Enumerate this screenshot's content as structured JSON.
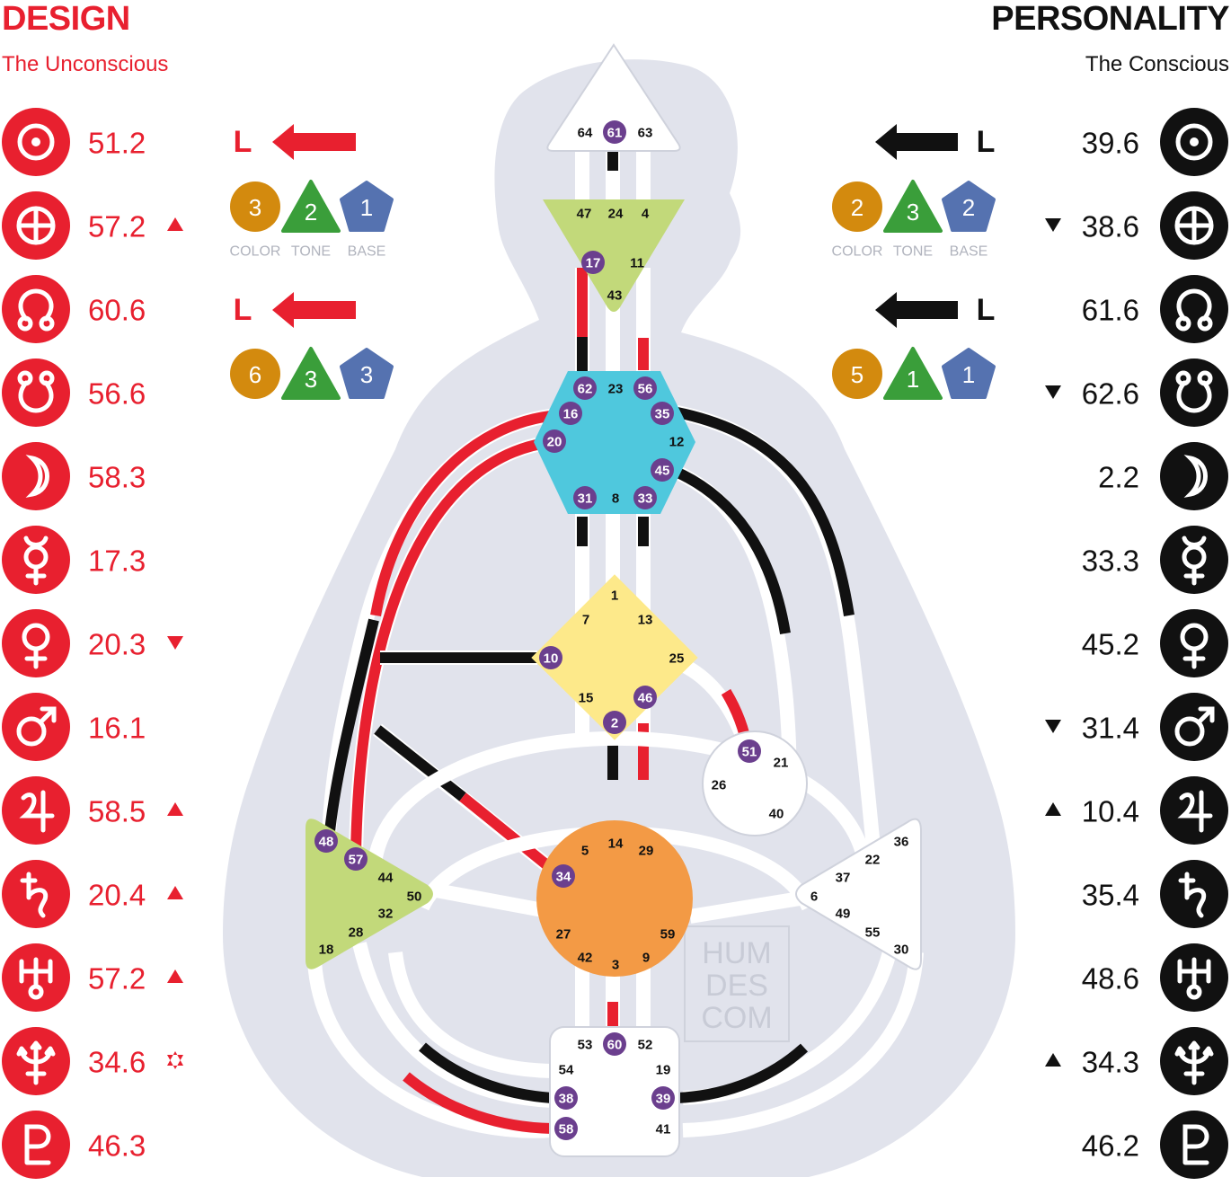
{
  "colors": {
    "design": "#e8202f",
    "personality": "#111111",
    "body_silhouette": "#e1e3ec",
    "activated_gate": "#6b3f8e",
    "color_badge": "#d38a0e",
    "tone_badge": "#3a9e3a",
    "base_badge": "#5572b0"
  },
  "design": {
    "title": "DESIGN",
    "subtitle": "The Unconscious",
    "variables": {
      "arrow_top": "L",
      "arrow_bottom": "L",
      "top_badges": [
        "3",
        "2",
        "1"
      ],
      "bottom_badges": [
        "6",
        "3",
        "3"
      ],
      "labels": [
        "COLOR",
        "TONE",
        "BASE"
      ]
    },
    "planets": [
      {
        "icon": "sun-icon",
        "value": "51.2",
        "marker": ""
      },
      {
        "icon": "earth-icon",
        "value": "57.2",
        "marker": "up"
      },
      {
        "icon": "north-node-icon",
        "value": "60.6",
        "marker": ""
      },
      {
        "icon": "south-node-icon",
        "value": "56.6",
        "marker": ""
      },
      {
        "icon": "moon-icon",
        "value": "58.3",
        "marker": ""
      },
      {
        "icon": "mercury-icon",
        "value": "17.3",
        "marker": ""
      },
      {
        "icon": "venus-icon",
        "value": "20.3",
        "marker": "down"
      },
      {
        "icon": "mars-icon",
        "value": "16.1",
        "marker": ""
      },
      {
        "icon": "jupiter-icon",
        "value": "58.5",
        "marker": "up"
      },
      {
        "icon": "saturn-icon",
        "value": "20.4",
        "marker": "up"
      },
      {
        "icon": "uranus-icon",
        "value": "57.2",
        "marker": "up"
      },
      {
        "icon": "neptune-icon",
        "value": "34.6",
        "marker": "star"
      },
      {
        "icon": "pluto-icon",
        "value": "46.3",
        "marker": ""
      }
    ]
  },
  "personality": {
    "title": "PERSONALITY",
    "subtitle": "The Conscious",
    "variables": {
      "arrow_top": "L",
      "arrow_bottom": "L",
      "top_badges": [
        "2",
        "3",
        "2"
      ],
      "bottom_badges": [
        "5",
        "1",
        "1"
      ],
      "labels": [
        "COLOR",
        "TONE",
        "BASE"
      ]
    },
    "planets": [
      {
        "icon": "sun-icon",
        "value": "39.6",
        "marker": ""
      },
      {
        "icon": "earth-icon",
        "value": "38.6",
        "marker": "down"
      },
      {
        "icon": "north-node-icon",
        "value": "61.6",
        "marker": ""
      },
      {
        "icon": "south-node-icon",
        "value": "62.6",
        "marker": "down"
      },
      {
        "icon": "moon-icon",
        "value": "2.2",
        "marker": ""
      },
      {
        "icon": "mercury-icon",
        "value": "33.3",
        "marker": ""
      },
      {
        "icon": "venus-icon",
        "value": "45.2",
        "marker": ""
      },
      {
        "icon": "mars-icon",
        "value": "31.4",
        "marker": "down"
      },
      {
        "icon": "jupiter-icon",
        "value": "10.4",
        "marker": "up"
      },
      {
        "icon": "saturn-icon",
        "value": "35.4",
        "marker": ""
      },
      {
        "icon": "uranus-icon",
        "value": "48.6",
        "marker": ""
      },
      {
        "icon": "neptune-icon",
        "value": "34.3",
        "marker": "up"
      },
      {
        "icon": "pluto-icon",
        "value": "46.2",
        "marker": ""
      }
    ]
  },
  "centers": {
    "head": {
      "color": "#ffffff",
      "gates": [
        "64",
        "61",
        "63"
      ],
      "active": [
        "61"
      ]
    },
    "ajna": {
      "color": "#c2d97a",
      "gates": [
        "47",
        "24",
        "4",
        "17",
        "11",
        "43"
      ],
      "active": [
        "17"
      ]
    },
    "throat": {
      "color": "#4fc8dd",
      "gates": [
        "62",
        "23",
        "56",
        "16",
        "35",
        "20",
        "12",
        "45",
        "31",
        "8",
        "33"
      ],
      "active": [
        "62",
        "56",
        "16",
        "35",
        "20",
        "45",
        "31",
        "33"
      ]
    },
    "g": {
      "color": "#fde98a",
      "gates": [
        "1",
        "7",
        "13",
        "10",
        "25",
        "15",
        "46",
        "2"
      ],
      "active": [
        "10",
        "46",
        "2"
      ]
    },
    "ego": {
      "color": "#ffffff",
      "gates": [
        "51",
        "21",
        "26",
        "40"
      ],
      "active": [
        "51"
      ]
    },
    "spleen": {
      "color": "#c2d97a",
      "gates": [
        "48",
        "57",
        "44",
        "50",
        "32",
        "28",
        "18"
      ],
      "active": [
        "48",
        "57"
      ]
    },
    "sacral": {
      "color": "#f39a45",
      "gates": [
        "5",
        "14",
        "29",
        "34",
        "27",
        "59",
        "42",
        "3",
        "9"
      ],
      "active": [
        "34"
      ]
    },
    "solar_plexus": {
      "color": "#ffffff",
      "gates": [
        "36",
        "22",
        "37",
        "6",
        "49",
        "55",
        "30"
      ],
      "active": []
    },
    "root": {
      "color": "#ffffff",
      "gates": [
        "53",
        "60",
        "52",
        "54",
        "19",
        "38",
        "39",
        "58",
        "41"
      ],
      "active": [
        "60",
        "38",
        "39",
        "58"
      ]
    }
  },
  "watermark": [
    "HUM",
    "DES",
    "COM"
  ]
}
